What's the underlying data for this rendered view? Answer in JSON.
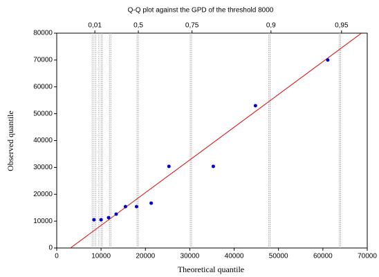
{
  "chart_data": {
    "type": "scatter",
    "title": "Q-Q plot against the GPD of the threshold 8000",
    "x_label": "Theoretical quantile",
    "y_label": "Observed quantile",
    "x": [
      8400,
      10000,
      11700,
      13400,
      15500,
      18000,
      21300,
      25300,
      35300,
      44800,
      61100
    ],
    "values": [
      10500,
      10500,
      11300,
      12600,
      15400,
      15400,
      16700,
      30400,
      30400,
      53000,
      70000
    ],
    "color": "#0000cc",
    "line": {
      "x": [
        3100,
        68700
      ],
      "y": [
        0,
        80000
      ],
      "color": "#e00000"
    },
    "xlim": [
      0,
      70000
    ],
    "ylim": [
      0,
      80000
    ],
    "xticks": [
      0,
      10000,
      20000,
      30000,
      40000,
      50000,
      60000,
      70000
    ],
    "yticks": [
      0,
      10000,
      20000,
      30000,
      40000,
      50000,
      60000,
      70000,
      80000
    ],
    "top_ticks": [
      {
        "value": 8600,
        "label": "0,01"
      },
      {
        "value": 18400,
        "label": "0,5"
      },
      {
        "value": 30500,
        "label": "0,75"
      },
      {
        "value": 48300,
        "label": "0,9"
      },
      {
        "value": 64200,
        "label": "0,95"
      }
    ],
    "quantile_lines": [
      8000,
      8400,
      8800,
      9500,
      10000,
      10300,
      11900,
      12200,
      18100,
      18400,
      30100,
      30400,
      47800,
      48100,
      63700,
      64000
    ]
  }
}
